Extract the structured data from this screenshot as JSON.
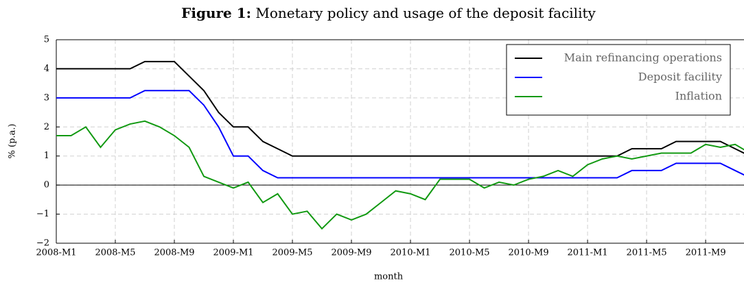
{
  "chart_data": {
    "type": "line",
    "title_prefix": "Figure 1:",
    "title": "Monetary policy and usage of the deposit facility",
    "x_label": "month",
    "y_label": "% (p.a.)",
    "x": [
      0,
      1,
      2,
      3,
      4,
      5,
      6,
      7,
      8,
      9,
      10,
      11,
      12,
      13,
      14,
      15,
      16,
      17,
      18,
      19,
      20,
      21,
      22,
      23,
      24,
      25,
      26,
      27,
      28,
      29,
      30,
      31,
      32,
      33,
      34,
      35,
      36,
      37,
      38,
      39,
      40,
      41,
      42,
      43,
      44,
      45,
      46,
      47
    ],
    "series": [
      {
        "name": "Main refinancing operations",
        "color": "#000000",
        "values": [
          4,
          4,
          4,
          4,
          4,
          4,
          4.25,
          4.25,
          4.25,
          3.75,
          3.25,
          2.5,
          2,
          2,
          1.5,
          1.25,
          1,
          1,
          1,
          1,
          1,
          1,
          1,
          1,
          1,
          1,
          1,
          1,
          1,
          1,
          1,
          1,
          1,
          1,
          1,
          1,
          1,
          1,
          1,
          1.25,
          1.25,
          1.25,
          1.5,
          1.5,
          1.5,
          1.5,
          1.25,
          1
        ]
      },
      {
        "name": "Deposit facility",
        "color": "#0000ff",
        "values": [
          3,
          3,
          3,
          3,
          3,
          3,
          3.25,
          3.25,
          3.25,
          3.25,
          2.75,
          2,
          1,
          1,
          0.5,
          0.25,
          0.25,
          0.25,
          0.25,
          0.25,
          0.25,
          0.25,
          0.25,
          0.25,
          0.25,
          0.25,
          0.25,
          0.25,
          0.25,
          0.25,
          0.25,
          0.25,
          0.25,
          0.25,
          0.25,
          0.25,
          0.25,
          0.25,
          0.25,
          0.5,
          0.5,
          0.5,
          0.75,
          0.75,
          0.75,
          0.75,
          0.5,
          0.25
        ]
      },
      {
        "name": "Inflation",
        "color": "#119911",
        "values": [
          1.7,
          1.7,
          2,
          1.3,
          1.9,
          2.1,
          2.2,
          2,
          1.7,
          1.3,
          0.3,
          0.1,
          -0.1,
          0.1,
          -0.6,
          -0.3,
          -1,
          -0.9,
          -1.5,
          -1,
          -1.2,
          -1,
          -0.6,
          -0.2,
          -0.3,
          -0.5,
          0.2,
          0.2,
          0.2,
          -0.1,
          0.1,
          0,
          0.2,
          0.3,
          0.5,
          0.3,
          0.7,
          0.9,
          1,
          0.9,
          1,
          1.1,
          1.1,
          1.1,
          1.4,
          1.3,
          1.4,
          1.1
        ]
      }
    ],
    "xlim": [
      0,
      46.6
    ],
    "xticks": [
      {
        "value": 0,
        "label": "2008-M1"
      },
      {
        "value": 4,
        "label": "2008-M5"
      },
      {
        "value": 8,
        "label": "2008-M9"
      },
      {
        "value": 12,
        "label": "2009-M1"
      },
      {
        "value": 16,
        "label": "2009-M5"
      },
      {
        "value": 20,
        "label": "2009-M9"
      },
      {
        "value": 24,
        "label": "2010-M1"
      },
      {
        "value": 28,
        "label": "2010-M5"
      },
      {
        "value": 32,
        "label": "2010-M9"
      },
      {
        "value": 36,
        "label": "2011-M1"
      },
      {
        "value": 40,
        "label": "2011-M5"
      },
      {
        "value": 44,
        "label": "2011-M9"
      }
    ],
    "ylim": [
      -2,
      5
    ],
    "yticks": [
      {
        "value": -2,
        "label": "−2"
      },
      {
        "value": -1,
        "label": "−1"
      },
      0,
      1,
      2,
      3,
      4,
      5
    ],
    "grid": true,
    "legend": "upper right"
  }
}
